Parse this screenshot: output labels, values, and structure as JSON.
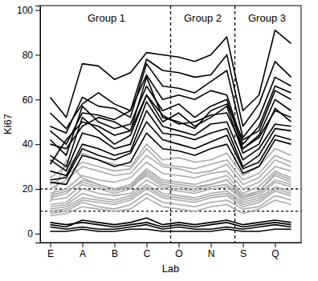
{
  "chart_data": {
    "type": "line",
    "x_label": "Lab",
    "y_label": "Ki67",
    "categories": [
      "E",
      null,
      "A",
      null,
      "B",
      null,
      "C",
      null,
      "O",
      null,
      "N",
      null,
      "S",
      null,
      "Q",
      null
    ],
    "ylim": [
      -4,
      102
    ],
    "yticks": [
      0,
      20,
      40,
      60,
      80,
      100
    ],
    "reference_lines": [
      10,
      20
    ],
    "groups": [
      {
        "label": "Group 1",
        "start": 0,
        "end": 7
      },
      {
        "label": "Group 2",
        "start": 8,
        "end": 11
      },
      {
        "label": "Group 3",
        "start": 12,
        "end": 15
      }
    ],
    "series": [
      {
        "color": "#aaaaaa",
        "values": [
          20,
          24,
          30,
          28,
          26,
          27,
          35,
          30,
          29,
          27,
          28,
          31,
          22,
          25,
          33,
          30
        ]
      },
      {
        "color": "#aaaaaa",
        "values": [
          18,
          20,
          26,
          24,
          23,
          25,
          32,
          27,
          26,
          25,
          27,
          28,
          20,
          23,
          30,
          28
        ]
      },
      {
        "color": "#aaaaaa",
        "values": [
          16,
          18,
          24,
          22,
          20,
          22,
          29,
          24,
          23,
          22,
          24,
          26,
          18,
          21,
          28,
          25
        ]
      },
      {
        "color": "#aaaaaa",
        "values": [
          15,
          16,
          22,
          20,
          18,
          20,
          27,
          22,
          21,
          20,
          22,
          24,
          17,
          19,
          26,
          23
        ]
      },
      {
        "color": "#aaaaaa",
        "values": [
          13,
          14,
          20,
          18,
          17,
          18,
          24,
          20,
          19,
          18,
          20,
          21,
          15,
          17,
          23,
          21
        ]
      },
      {
        "color": "#aaaaaa",
        "values": [
          12,
          13,
          18,
          16,
          15,
          17,
          22,
          18,
          17,
          16,
          18,
          19,
          14,
          16,
          21,
          19
        ]
      },
      {
        "color": "#aaaaaa",
        "values": [
          10,
          11,
          15,
          14,
          13,
          15,
          20,
          16,
          15,
          14,
          16,
          17,
          12,
          14,
          19,
          17
        ]
      },
      {
        "color": "#aaaaaa",
        "values": [
          9,
          10,
          14,
          12,
          11,
          13,
          18,
          14,
          13,
          12,
          14,
          15,
          11,
          12,
          17,
          15
        ]
      },
      {
        "color": "#aaaaaa",
        "values": [
          22,
          26,
          32,
          30,
          28,
          29,
          38,
          31,
          30,
          29,
          31,
          33,
          24,
          27,
          35,
          32
        ]
      },
      {
        "color": "#aaaaaa",
        "values": [
          25,
          30,
          36,
          33,
          31,
          30,
          40,
          33,
          34,
          32,
          33,
          36,
          26,
          30,
          38,
          35
        ]
      },
      {
        "color": "#aaaaaa",
        "values": [
          14,
          33,
          25,
          22,
          20,
          21,
          28,
          23,
          22,
          21,
          22,
          24,
          16,
          19,
          27,
          24
        ]
      },
      {
        "color": "#aaaaaa",
        "values": [
          17,
          19,
          23,
          21,
          19,
          21,
          26,
          21,
          20,
          19,
          21,
          22,
          16,
          18,
          24,
          22
        ]
      },
      {
        "color": "#aaaaaa",
        "values": [
          11,
          12,
          16,
          15,
          14,
          16,
          21,
          17,
          16,
          15,
          17,
          18,
          13,
          15,
          20,
          18
        ]
      },
      {
        "color": "#aaaaaa",
        "values": [
          8,
          9,
          12,
          11,
          10,
          11,
          16,
          12,
          11,
          10,
          12,
          13,
          9,
          11,
          15,
          13
        ]
      },
      {
        "color": "#000000",
        "values": [
          61,
          52,
          76,
          75,
          69,
          72,
          81,
          80,
          79,
          77,
          80,
          88,
          55,
          62,
          91,
          85
        ]
      },
      {
        "color": "#000000",
        "values": [
          54,
          47,
          58,
          63,
          58,
          55,
          78,
          73,
          72,
          70,
          71,
          80,
          48,
          58,
          77,
          70
        ]
      },
      {
        "color": "#000000",
        "values": [
          48,
          45,
          61,
          57,
          56,
          52,
          76,
          66,
          65,
          63,
          68,
          73,
          43,
          52,
          70,
          66
        ]
      },
      {
        "color": "#000000",
        "values": [
          46,
          40,
          54,
          53,
          51,
          55,
          71,
          60,
          62,
          60,
          64,
          62,
          40,
          48,
          66,
          63
        ]
      },
      {
        "color": "#000000",
        "values": [
          42,
          35,
          57,
          50,
          47,
          49,
          66,
          55,
          58,
          52,
          57,
          60,
          38,
          44,
          60,
          55
        ]
      },
      {
        "color": "#000000",
        "values": [
          35,
          30,
          52,
          46,
          40,
          44,
          62,
          50,
          54,
          48,
          52,
          57,
          36,
          40,
          56,
          50
        ]
      },
      {
        "color": "#000000",
        "values": [
          33,
          28,
          45,
          43,
          38,
          40,
          59,
          48,
          46,
          44,
          49,
          50,
          33,
          38,
          49,
          48
        ]
      },
      {
        "color": "#000000",
        "values": [
          28,
          26,
          40,
          38,
          35,
          37,
          55,
          45,
          44,
          42,
          45,
          47,
          30,
          35,
          47,
          46
        ]
      },
      {
        "color": "#000000",
        "values": [
          24,
          25,
          38,
          35,
          33,
          36,
          50,
          42,
          40,
          38,
          41,
          44,
          29,
          32,
          44,
          42
        ]
      },
      {
        "color": "#000000",
        "values": [
          23,
          22,
          35,
          33,
          30,
          32,
          45,
          38,
          37,
          35,
          38,
          40,
          27,
          30,
          42,
          40
        ]
      },
      {
        "color": "#000000",
        "values": [
          31,
          42,
          50,
          48,
          44,
          46,
          70,
          52,
          50,
          47,
          55,
          58,
          42,
          46,
          64,
          60
        ]
      },
      {
        "color": "#000000",
        "values": [
          40,
          38,
          48,
          52,
          50,
          46,
          62,
          53,
          49,
          50,
          53,
          54,
          38,
          43,
          55,
          52
        ]
      },
      {
        "color": "#000000",
        "values": [
          5,
          4,
          5,
          4,
          3,
          4,
          5,
          3,
          4,
          3,
          4,
          5,
          3,
          4,
          5,
          4
        ]
      },
      {
        "color": "#000000",
        "values": [
          3,
          2,
          3,
          2,
          2,
          3,
          4,
          2,
          3,
          2,
          2,
          3,
          2,
          3,
          4,
          3
        ]
      },
      {
        "color": "#000000",
        "values": [
          1,
          1,
          2,
          1,
          1,
          2,
          2,
          1,
          1,
          1,
          1,
          2,
          1,
          1,
          2,
          2
        ]
      },
      {
        "color": "#000000",
        "values": [
          4,
          3,
          6,
          5,
          4,
          5,
          7,
          4,
          5,
          4,
          5,
          6,
          4,
          5,
          6,
          5
        ]
      }
    ]
  }
}
